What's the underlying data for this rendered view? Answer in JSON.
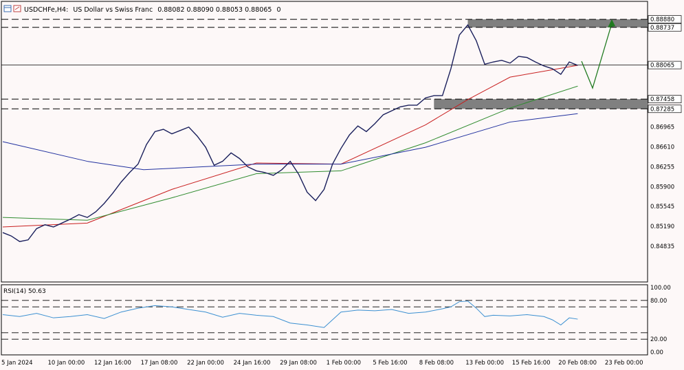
{
  "header": {
    "symbol": "USDCHFe,H4:",
    "description": "US Dollar vs Swiss Franc",
    "ohlc": "0.88082 0.88090 0.88053 0.88065",
    "extra": "0"
  },
  "colors": {
    "background": "#fdf8f8",
    "bull_candle": "#1a1f5c",
    "ma_fast": "#c81e1e",
    "ma_mid": "#2e8b2e",
    "ma_slow": "#1f2f9e",
    "rsi": "#3a8fd1",
    "zone": "#808080",
    "arrow": "#1f7a1f",
    "fractal_up": "#3aa856",
    "fractal_down": "#d040d0"
  },
  "icons": [
    "chart-window-icon",
    "settings-icon"
  ],
  "chart_data": [
    {
      "type": "line",
      "title": "USDCHFe,H4",
      "instrument": "US Dollar vs Swiss Franc",
      "ylim": [
        0.842,
        0.892
      ],
      "x_date_labels": [
        "5 Jan 2024",
        "10 Jan 00:00",
        "12 Jan 16:00",
        "17 Jan 08:00",
        "22 Jan 00:00",
        "24 Jan 16:00",
        "29 Jan 08:00",
        "1 Feb 00:00",
        "5 Feb 16:00",
        "8 Feb 08:00",
        "13 Feb 00:00",
        "15 Feb 16:00",
        "20 Feb 08:00",
        "23 Feb 00:00"
      ],
      "price_ticks": [
        "0.88880",
        "0.88737",
        "0.88065",
        "0.87458",
        "0.87285",
        "0.86965",
        "0.86610",
        "0.86255",
        "0.85900",
        "0.85545",
        "0.85190",
        "0.84835"
      ],
      "ohlc_last": {
        "open": 0.88082,
        "high": 0.8809,
        "low": 0.88053,
        "close": 0.88065
      },
      "current_price": 0.88065,
      "zones": [
        {
          "from": 0.88737,
          "to": 0.8888
        },
        {
          "from": 0.87285,
          "to": 0.87458
        }
      ],
      "close_path": [
        [
          0,
          0.8508
        ],
        [
          3,
          0.8502
        ],
        [
          6,
          0.8492
        ],
        [
          9,
          0.8495
        ],
        [
          12,
          0.8515
        ],
        [
          15,
          0.8522
        ],
        [
          18,
          0.8518
        ],
        [
          21,
          0.8525
        ],
        [
          24,
          0.8532
        ],
        [
          27,
          0.854
        ],
        [
          30,
          0.8535
        ],
        [
          33,
          0.8545
        ],
        [
          36,
          0.856
        ],
        [
          39,
          0.8578
        ],
        [
          42,
          0.8598
        ],
        [
          45,
          0.8615
        ],
        [
          48,
          0.863
        ],
        [
          51,
          0.8665
        ],
        [
          54,
          0.8688
        ],
        [
          57,
          0.8692
        ],
        [
          60,
          0.8684
        ],
        [
          63,
          0.869
        ],
        [
          66,
          0.8696
        ],
        [
          69,
          0.868
        ],
        [
          72,
          0.866
        ],
        [
          75,
          0.8628
        ],
        [
          78,
          0.8635
        ],
        [
          81,
          0.865
        ],
        [
          84,
          0.864
        ],
        [
          87,
          0.8625
        ],
        [
          90,
          0.8618
        ],
        [
          93,
          0.8615
        ],
        [
          96,
          0.861
        ],
        [
          99,
          0.862
        ],
        [
          102,
          0.8635
        ],
        [
          105,
          0.8612
        ],
        [
          108,
          0.858
        ],
        [
          111,
          0.8565
        ],
        [
          114,
          0.8585
        ],
        [
          117,
          0.863
        ],
        [
          120,
          0.8658
        ],
        [
          123,
          0.8682
        ],
        [
          126,
          0.8698
        ],
        [
          129,
          0.8688
        ],
        [
          132,
          0.8702
        ],
        [
          135,
          0.8718
        ],
        [
          138,
          0.8725
        ],
        [
          141,
          0.8732
        ],
        [
          144,
          0.8735
        ],
        [
          147,
          0.8735
        ],
        [
          150,
          0.8748
        ],
        [
          153,
          0.8752
        ],
        [
          156,
          0.8752
        ],
        [
          159,
          0.88
        ],
        [
          162,
          0.886
        ],
        [
          165,
          0.8878
        ],
        [
          168,
          0.885
        ],
        [
          171,
          0.8808
        ],
        [
          174,
          0.8812
        ],
        [
          177,
          0.8815
        ],
        [
          180,
          0.881
        ],
        [
          183,
          0.8822
        ],
        [
          186,
          0.882
        ],
        [
          189,
          0.8812
        ],
        [
          192,
          0.8805
        ],
        [
          195,
          0.88
        ],
        [
          198,
          0.879
        ],
        [
          201,
          0.8812
        ],
        [
          204,
          0.8806
        ]
      ],
      "series": [
        {
          "values": [
            [
              0,
              0.8518
            ],
            [
              30,
              0.8525
            ],
            [
              60,
              0.8585
            ],
            [
              90,
              0.8632
            ],
            [
              120,
              0.863
            ],
            [
              150,
              0.87
            ],
            [
              165,
              0.8745
            ],
            [
              180,
              0.8785
            ],
            [
              204,
              0.8806
            ]
          ]
        },
        {
          "values": [
            [
              0,
              0.8535
            ],
            [
              30,
              0.853
            ],
            [
              60,
              0.857
            ],
            [
              90,
              0.8613
            ],
            [
              120,
              0.8618
            ],
            [
              150,
              0.8668
            ],
            [
              180,
              0.873
            ],
            [
              204,
              0.8769
            ]
          ]
        },
        {
          "values": [
            [
              0,
              0.867
            ],
            [
              30,
              0.8635
            ],
            [
              50,
              0.862
            ],
            [
              90,
              0.863
            ],
            [
              120,
              0.863
            ],
            [
              150,
              0.866
            ],
            [
              180,
              0.8705
            ],
            [
              204,
              0.872
            ]
          ]
        }
      ]
    },
    {
      "type": "line",
      "title": "RSI(14) 50.63",
      "ylim": [
        0,
        100
      ],
      "y_ticks": [
        "100.00",
        "80.00",
        "20.00",
        "0.00"
      ],
      "levels": [
        80,
        70,
        30,
        20
      ],
      "values": [
        [
          0,
          58
        ],
        [
          6,
          55
        ],
        [
          12,
          60
        ],
        [
          18,
          53
        ],
        [
          24,
          55
        ],
        [
          30,
          58
        ],
        [
          36,
          52
        ],
        [
          42,
          62
        ],
        [
          48,
          68
        ],
        [
          54,
          72
        ],
        [
          60,
          70
        ],
        [
          66,
          66
        ],
        [
          72,
          62
        ],
        [
          78,
          54
        ],
        [
          84,
          60
        ],
        [
          90,
          57
        ],
        [
          96,
          55
        ],
        [
          102,
          45
        ],
        [
          108,
          42
        ],
        [
          114,
          38
        ],
        [
          120,
          62
        ],
        [
          126,
          65
        ],
        [
          132,
          64
        ],
        [
          138,
          66
        ],
        [
          144,
          60
        ],
        [
          150,
          62
        ],
        [
          156,
          67
        ],
        [
          159,
          70
        ],
        [
          162,
          78
        ],
        [
          165,
          79
        ],
        [
          168,
          68
        ],
        [
          171,
          55
        ],
        [
          174,
          57
        ],
        [
          180,
          56
        ],
        [
          186,
          58
        ],
        [
          192,
          55
        ],
        [
          195,
          50
        ],
        [
          198,
          42
        ],
        [
          201,
          53
        ],
        [
          204,
          51
        ]
      ]
    }
  ]
}
